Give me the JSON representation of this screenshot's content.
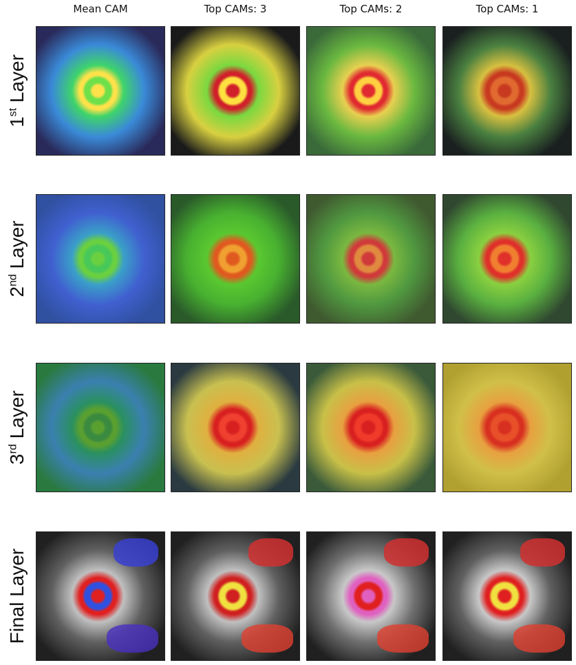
{
  "columns": [
    "Mean CAM",
    "Top CAMs: 3",
    "Top CAMs: 2",
    "Top CAMs: 1"
  ],
  "rows": [
    {
      "number": "1",
      "suffix": "st",
      "text": "Layer"
    },
    {
      "number": "2",
      "suffix": "nd",
      "text": "Layer"
    },
    {
      "number": "3",
      "suffix": "rd",
      "text": "Layer"
    },
    {
      "text": "Final Layer"
    }
  ]
}
